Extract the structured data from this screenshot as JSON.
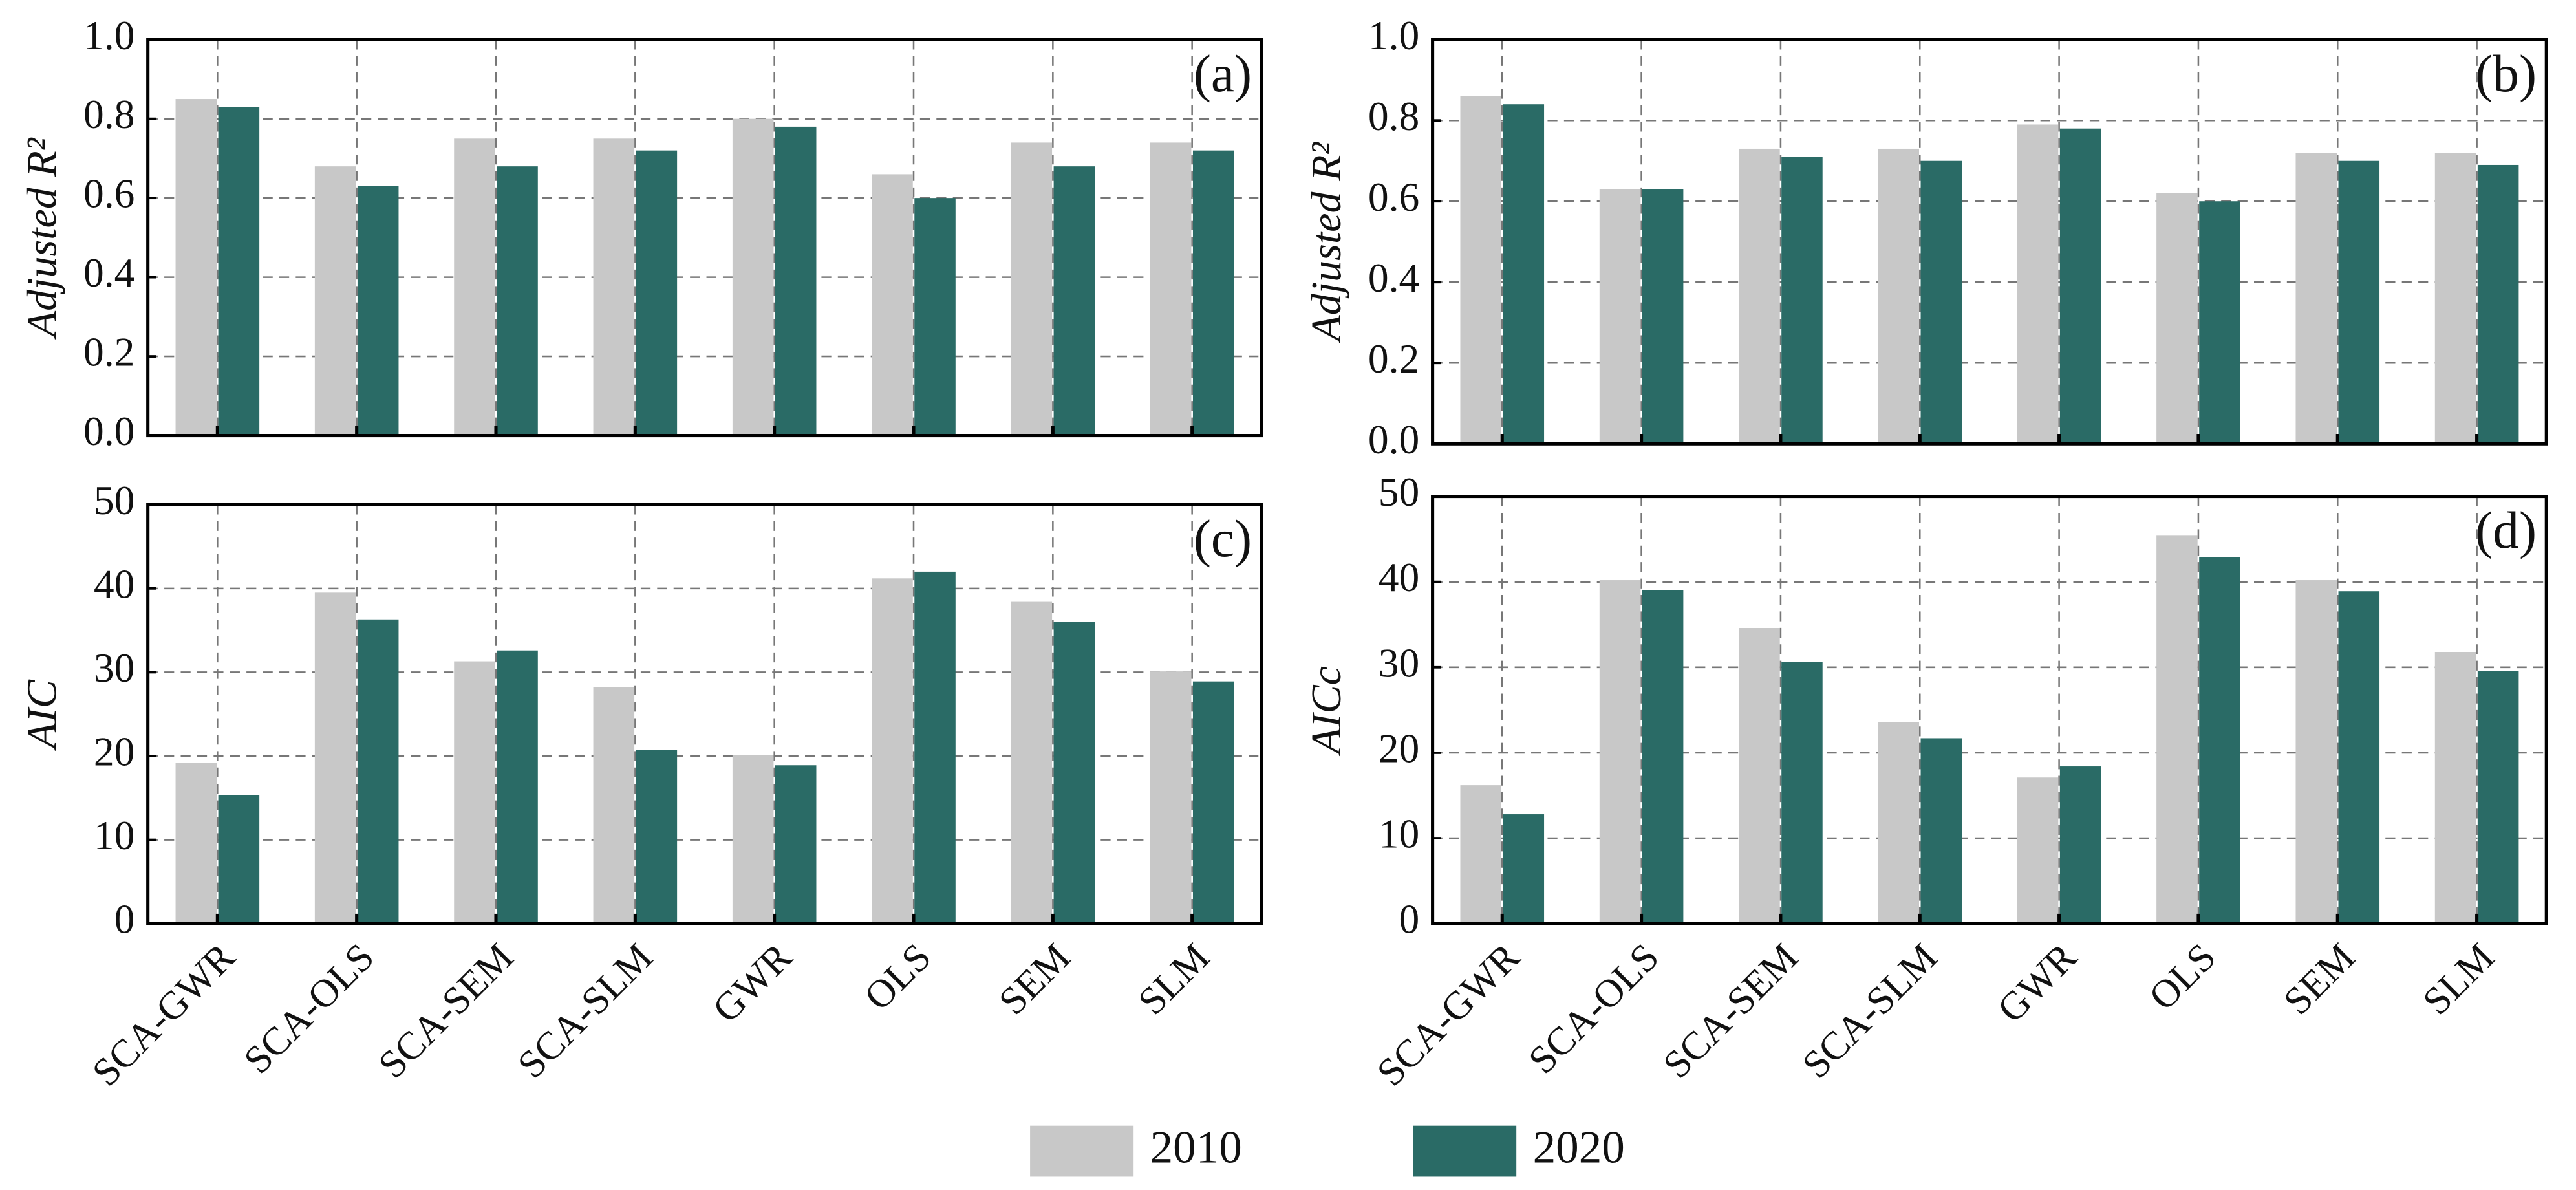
{
  "chart_data": [
    {
      "type": "bar",
      "label": "(a)",
      "ylabel": "Adjusted R²",
      "grid": true,
      "ylim": [
        0,
        1
      ],
      "yticks": [
        {
          "value": 0,
          "label": "0.0"
        },
        {
          "value": 0.2,
          "label": "0.2"
        },
        {
          "value": 0.4,
          "label": "0.4"
        },
        {
          "value": 0.6,
          "label": "0.6"
        },
        {
          "value": 0.8,
          "label": "0.8"
        },
        {
          "value": 1,
          "label": "1.0"
        }
      ],
      "series": [
        {
          "name": "2010",
          "color": "#c8c8c8",
          "values": [
            0.85,
            0.68,
            0.75,
            0.75,
            0.8,
            0.66,
            0.74,
            0.74
          ]
        },
        {
          "name": "2020",
          "color": "#2a6b66",
          "values": [
            0.83,
            0.63,
            0.68,
            0.72,
            0.78,
            0.6,
            0.68,
            0.72
          ]
        }
      ]
    },
    {
      "type": "bar",
      "label": "(b)",
      "ylabel": "Adjusted R²",
      "grid": true,
      "ylim": [
        0,
        1
      ],
      "yticks": [
        {
          "value": 0,
          "label": "0.0"
        },
        {
          "value": 0.2,
          "label": "0.2"
        },
        {
          "value": 0.4,
          "label": "0.4"
        },
        {
          "value": 0.6,
          "label": "0.6"
        },
        {
          "value": 0.8,
          "label": "0.8"
        },
        {
          "value": 1,
          "label": "1.0"
        }
      ],
      "series": [
        {
          "color": "#c8c8c8",
          "values": [
            0.86,
            0.63,
            0.73,
            0.73,
            0.79,
            0.62,
            0.72,
            0.72
          ]
        },
        {
          "color": "#2a6b66",
          "values": [
            0.84,
            0.63,
            0.71,
            0.7,
            0.78,
            0.6,
            0.7,
            0.69
          ]
        }
      ]
    },
    {
      "type": "bar",
      "label": "(c)",
      "ylabel": "AIC",
      "grid": true,
      "ylim": [
        0,
        50
      ],
      "yticks": [
        0,
        10,
        20,
        30,
        40,
        50
      ],
      "categories": [
        "SCA-GWR",
        "SCA-OLS",
        "SCA-SEM",
        "SCA-SLM",
        "GWR",
        "OLS",
        "SEM",
        "SLM"
      ],
      "series": [
        {
          "color": "#c8c8c8",
          "values": [
            19.2,
            39.5,
            31.3,
            28.2,
            20.1,
            41.2,
            38.4,
            30.1
          ]
        },
        {
          "color": "#2a6b66",
          "values": [
            15.3,
            36.3,
            32.6,
            20.7,
            18.9,
            42.0,
            36.0,
            28.9
          ]
        }
      ]
    },
    {
      "type": "bar",
      "label": "(d)",
      "ylabel": "AICc",
      "grid": true,
      "ylim": [
        0,
        50
      ],
      "yticks": [
        0,
        10,
        20,
        30,
        40,
        50
      ],
      "categories": [
        "SCA-GWR",
        "SCA-OLS",
        "SCA-SEM",
        "SCA-SLM",
        "GWR",
        "OLS",
        "SEM",
        "SLM"
      ],
      "series": [
        {
          "color": "#c8c8c8",
          "values": [
            16.2,
            40.2,
            34.6,
            23.6,
            17.1,
            45.4,
            40.2,
            31.8
          ]
        },
        {
          "color": "#2a6b66",
          "values": [
            12.8,
            39.0,
            30.6,
            21.7,
            18.4,
            42.9,
            38.9,
            29.6
          ]
        }
      ]
    }
  ]
}
